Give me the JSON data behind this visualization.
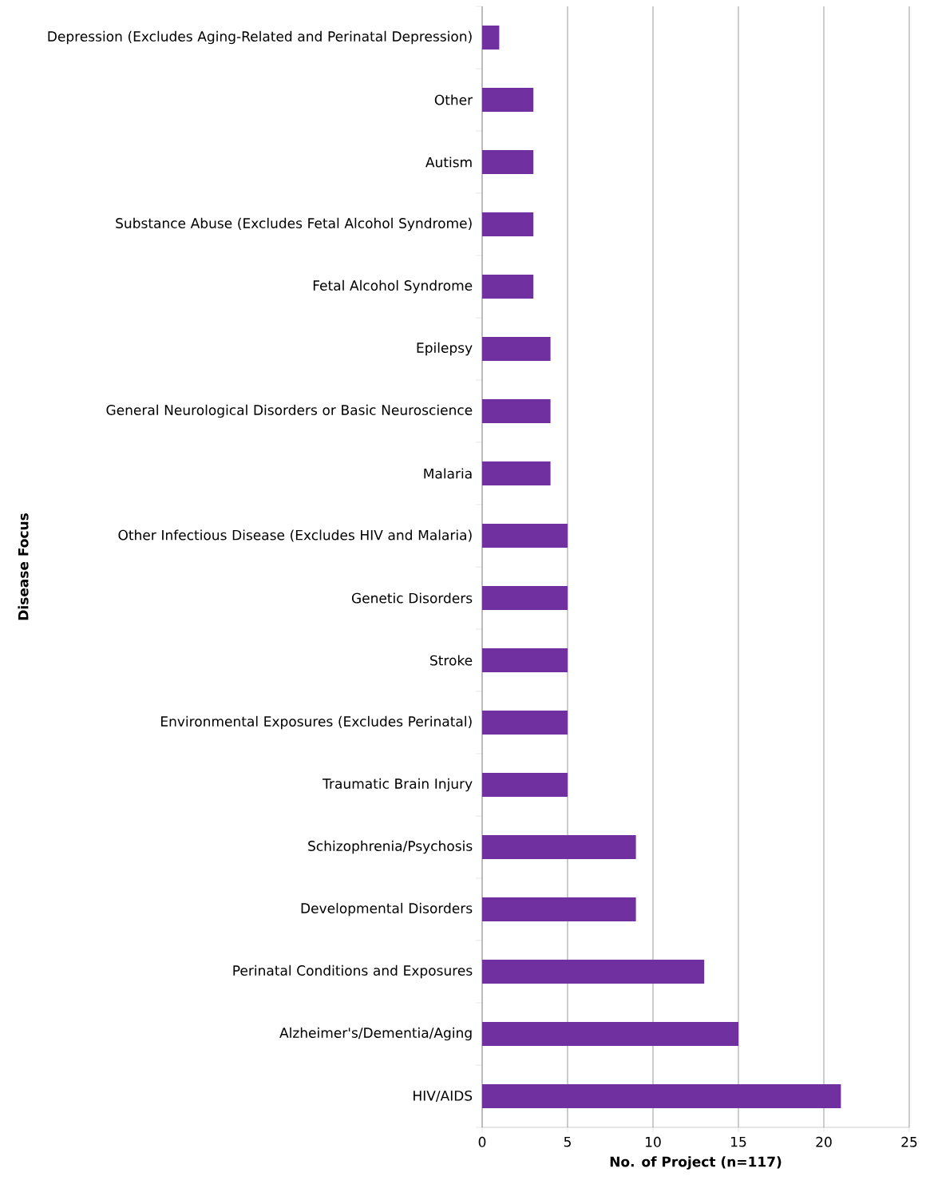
{
  "chart_data": {
    "type": "bar",
    "orientation": "horizontal",
    "xlabel": "No. of Project (n=117)",
    "ylabel": "Disease Focus",
    "categories": [
      "Depression (Excludes Aging-Related and Perinatal Depression)",
      "Other",
      "Autism",
      "Substance Abuse (Excludes Fetal Alcohol Syndrome)",
      "Fetal Alcohol Syndrome",
      "Epilepsy",
      "General Neurological Disorders or Basic Neuroscience",
      "Malaria",
      "Other Infectious Disease (Excludes HIV and Malaria)",
      "Genetic Disorders",
      "Stroke",
      "Environmental Exposures (Excludes Perinatal)",
      "Traumatic Brain Injury",
      "Schizophrenia/Psychosis",
      "Developmental Disorders",
      "Perinatal Conditions and Exposures",
      "Alzheimer's/Dementia/Aging",
      "HIV/AIDS"
    ],
    "values": [
      1,
      3,
      3,
      3,
      3,
      4,
      4,
      4,
      5,
      5,
      5,
      5,
      5,
      9,
      9,
      13,
      15,
      21
    ],
    "color": "#7030a0",
    "xlim": [
      0,
      25
    ],
    "xticks": [
      0,
      5,
      10,
      15,
      20,
      25
    ],
    "grid": "x"
  }
}
